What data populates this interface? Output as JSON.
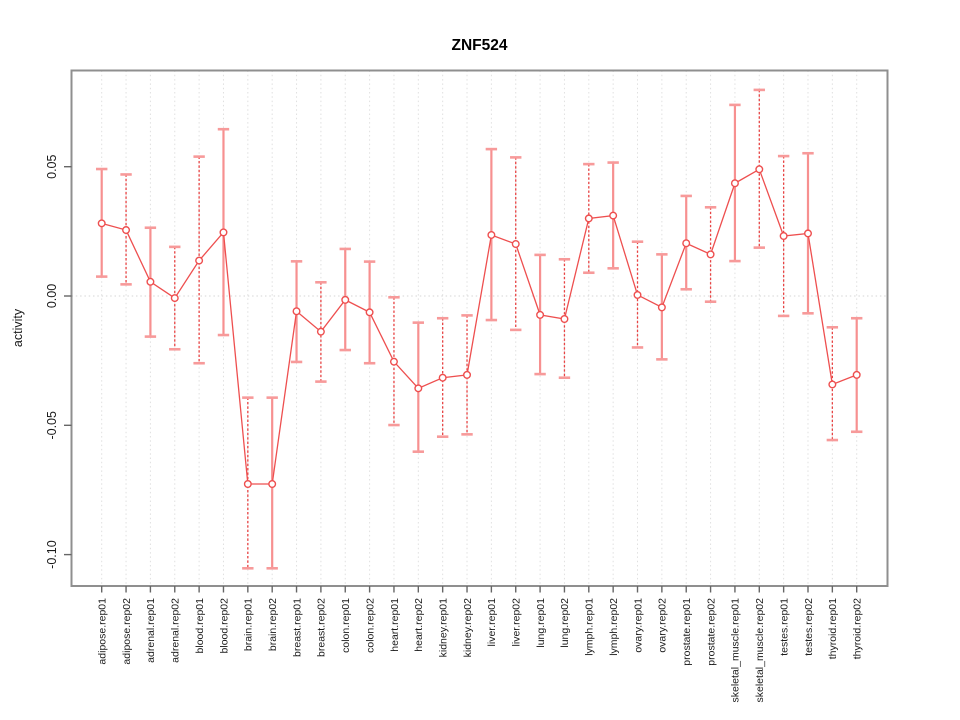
{
  "chart_data": {
    "type": "line",
    "title": "ZNF524",
    "xlabel": "",
    "ylabel": "activity",
    "ylim": [
      -0.112,
      0.087
    ],
    "grid": "dotted vertical gridline at each category; dotted horizontal line at y=0",
    "legend_position": "none",
    "y_ticks": [
      {
        "label": "0.05",
        "value": 0.05
      },
      {
        "label": "0.00",
        "value": 0.0
      },
      {
        "label": "-0.05",
        "value": -0.05
      },
      {
        "label": "-0.10",
        "value": -0.1
      }
    ],
    "categories": [
      "adipose.rep01",
      "adipose.rep02",
      "adrenal.rep01",
      "adrenal.rep02",
      "blood.rep01",
      "blood.rep02",
      "brain.rep01",
      "brain.rep02",
      "breast.rep01",
      "breast.rep02",
      "colon.rep01",
      "colon.rep02",
      "heart.rep01",
      "heart.rep02",
      "kidney.rep01",
      "kidney.rep02",
      "liver.rep01",
      "liver.rep02",
      "lung.rep01",
      "lung.rep02",
      "lymph.rep01",
      "lymph.rep02",
      "ovary.rep01",
      "ovary.rep02",
      "prostate.rep01",
      "prostate.rep02",
      "skeletal_muscle.rep01",
      "skeletal_muscle.rep02",
      "testes.rep01",
      "testes.rep02",
      "thyroid.rep01",
      "thyroid.rep02"
    ],
    "series": [
      {
        "name": "activity",
        "marker": "open-circle",
        "values": [
          0.0281,
          0.0255,
          0.0055,
          -0.0008,
          0.0137,
          0.0246,
          -0.0727,
          -0.0727,
          -0.0059,
          -0.0138,
          -0.0015,
          -0.0063,
          -0.0254,
          -0.0357,
          -0.0316,
          -0.0305,
          0.0236,
          0.0201,
          -0.0073,
          -0.0089,
          0.03,
          0.0311,
          0.0004,
          -0.0044,
          0.0204,
          0.0161,
          0.0436,
          0.049,
          0.0232,
          0.0242,
          -0.0342,
          -0.0305
        ],
        "error_low": [
          0.0075,
          0.0045,
          -0.0157,
          -0.0206,
          -0.026,
          -0.0151,
          -0.1053,
          -0.1053,
          -0.0255,
          -0.0331,
          -0.0209,
          -0.026,
          -0.0499,
          -0.0602,
          -0.0544,
          -0.0535,
          -0.0093,
          -0.0131,
          -0.0302,
          -0.0316,
          0.009,
          0.0107,
          -0.0199,
          -0.0245,
          0.0026,
          -0.0022,
          0.0135,
          0.0187,
          -0.0077,
          -0.0067,
          -0.0557,
          -0.0525
        ],
        "error_high": [
          0.0491,
          0.047,
          0.0264,
          0.019,
          0.0539,
          0.0645,
          -0.0393,
          -0.0393,
          0.0134,
          0.0053,
          0.0182,
          0.0133,
          -0.0005,
          -0.0103,
          -0.0086,
          -0.0075,
          0.0568,
          0.0536,
          0.0159,
          0.0142,
          0.051,
          0.0516,
          0.021,
          0.0161,
          0.0387,
          0.0343,
          0.0739,
          0.0797,
          0.0541,
          0.0552,
          -0.0121,
          -0.0086
        ],
        "error_bar_line_style": [
          "solid",
          "dashed",
          "solid",
          "dashed",
          "dashed",
          "solid",
          "dashed",
          "solid",
          "solid",
          "dashed",
          "solid",
          "solid",
          "dashed",
          "solid",
          "dashed",
          "dashed",
          "solid",
          "dashed",
          "solid",
          "dashed",
          "dashed",
          "solid",
          "dashed",
          "solid",
          "solid",
          "dashed",
          "solid",
          "dashed",
          "dashed",
          "solid",
          "dashed",
          "solid"
        ]
      }
    ],
    "colors": {
      "line": "#ee4f4f",
      "dashed_bar": "#e84343",
      "solid_bar": "#f79090",
      "bar_cap": "#f79a9a",
      "marker_fill": "#ffffff",
      "grid": "#e0e0e0",
      "zero_line": "#d6d6d6",
      "box": "#8f8f8f",
      "tick": "#666666",
      "text": "#1a1a1a"
    }
  }
}
